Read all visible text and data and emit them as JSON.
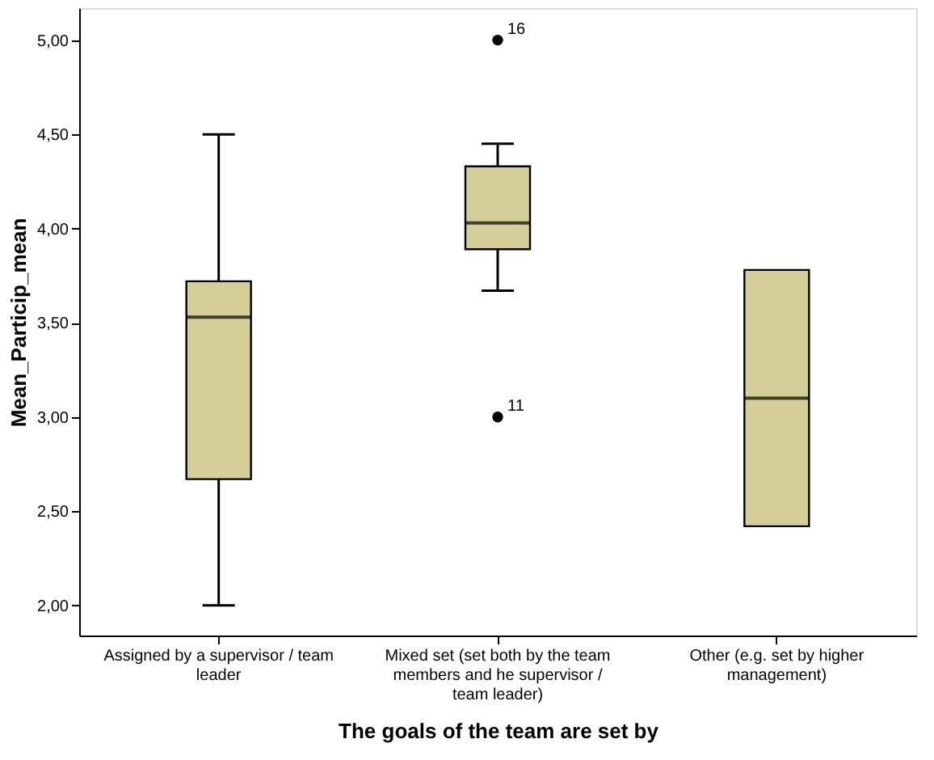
{
  "chart_data": {
    "type": "box",
    "xlabel": "The goals of the team are set by",
    "ylabel": "Mean_Particip_mean",
    "categories": [
      "Assigned by a supervisor / team leader",
      "Mixed set (set both by the team members and he supervisor / team leader)",
      "Other (e.g. set by higher management)"
    ],
    "boxes": [
      {
        "low": 2.0,
        "q1": 2.67,
        "median": 3.53,
        "q3": 3.72,
        "high": 4.5
      },
      {
        "low": 3.67,
        "q1": 3.89,
        "median": 4.03,
        "q3": 4.33,
        "high": 4.45,
        "outliers": [
          5.0,
          3.0
        ]
      },
      {
        "low": 2.42,
        "q1": 2.42,
        "median": 3.1,
        "q3": 3.78,
        "high": 3.78
      }
    ],
    "color": "#d4cf98",
    "ylim": [
      1.84,
      5.17
    ],
    "yticks": [
      {
        "value": 2,
        "label": "2,00"
      },
      {
        "value": 2.5,
        "label": "2,50"
      },
      {
        "value": 3,
        "label": "3,00"
      },
      {
        "value": 3.5,
        "label": "3,50"
      },
      {
        "value": 4,
        "label": "4,00"
      },
      {
        "value": 4.5,
        "label": "4,50"
      },
      {
        "value": 5,
        "label": "5,00"
      }
    ],
    "annotations": [
      "16",
      "11"
    ]
  }
}
